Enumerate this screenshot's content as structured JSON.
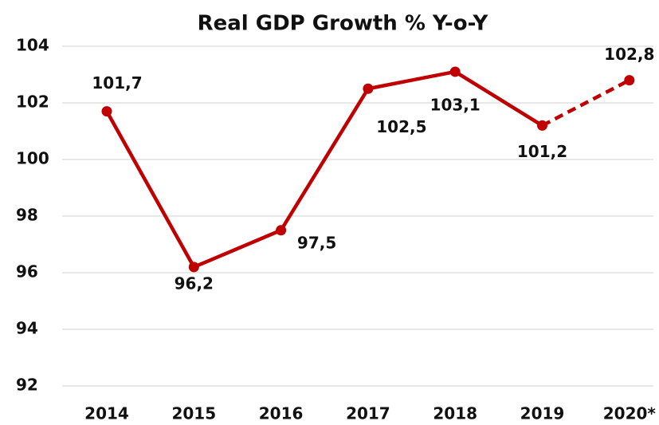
{
  "chart_data": {
    "type": "line",
    "title": "Real GDP Growth % Y-o-Y",
    "categories": [
      "2014",
      "2015",
      "2016",
      "2017",
      "2018",
      "2019",
      "2020*"
    ],
    "series": [
      {
        "name": "Real GDP Growth % Y-o-Y",
        "color": "#c00000",
        "values": [
          101.7,
          96.2,
          97.5,
          102.5,
          103.1,
          101.2,
          102.8
        ],
        "value_labels": [
          "101,7",
          "96,2",
          "97,5",
          "102,5",
          "103,1",
          "101,2",
          "102,8"
        ],
        "dashed_last_segment": true
      }
    ],
    "ylim": [
      92,
      104
    ],
    "yticks": [
      92,
      94,
      96,
      98,
      100,
      102,
      104
    ],
    "grid": true
  }
}
